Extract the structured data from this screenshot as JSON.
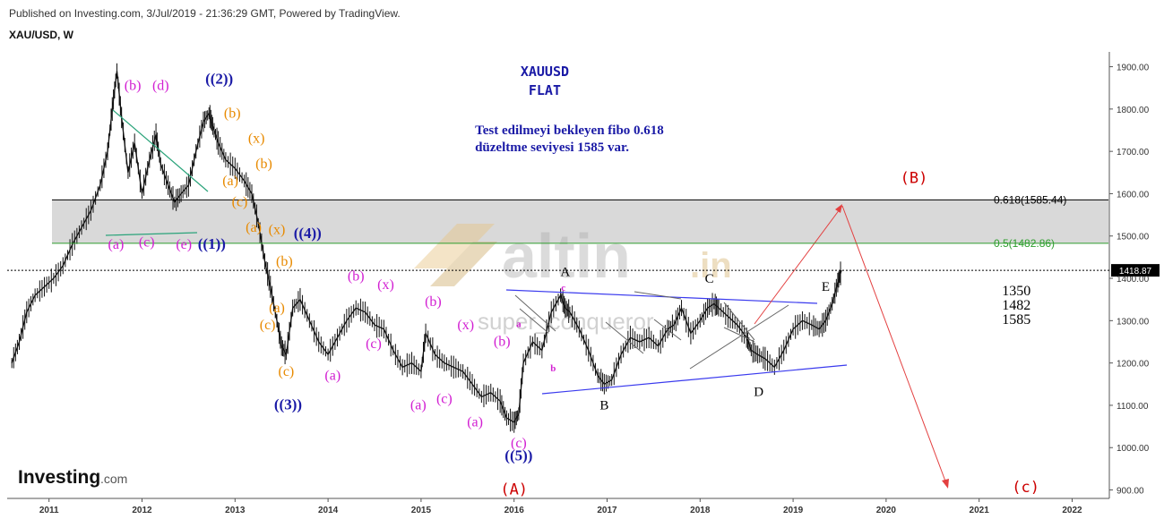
{
  "header": {
    "published": "Published on Investing.com, 3/Jul/2019 - 21:36:29 GMT, Powered by TradingView.",
    "symbol": "XAU/USD, W"
  },
  "branding": {
    "logo_text": "Investing",
    "logo_suffix": ".com",
    "watermark_main": "altin",
    "watermark_suffix": ".in",
    "watermark_sub": "super_conqueror"
  },
  "chart_data": {
    "type": "line",
    "title": "",
    "x_ticks": [
      "2011",
      "2012",
      "2013",
      "2014",
      "2015",
      "2016",
      "2017",
      "2018",
      "2019",
      "2020",
      "2021",
      "2022"
    ],
    "y_ticks": [
      "1900.00",
      "1800.00",
      "1700.00",
      "1600.00",
      "1500.00",
      "1400.00",
      "1300.00",
      "1200.00",
      "1100.00",
      "1000.00",
      "900.00"
    ],
    "ylim": [
      880,
      1935
    ],
    "xlim": [
      2010.55,
      2022.4
    ],
    "current_price": {
      "label": "1418.87",
      "value": 1418.87
    },
    "fib_levels": [
      {
        "label": "0.618(1585.44)",
        "value": 1585.44,
        "color": "#000000"
      },
      {
        "label": "0.5(1482.86)",
        "value": 1482.86,
        "color": "#2e9e2e"
      }
    ],
    "fib_zone": [
      1482.86,
      1585.44
    ],
    "series": [
      {
        "name": "",
        "x": [
          2010.6,
          2010.68,
          2010.76,
          2010.85,
          2010.95,
          2011.05,
          2011.15,
          2011.25,
          2011.35,
          2011.45,
          2011.55,
          2011.63,
          2011.68,
          2011.73,
          2011.78,
          2011.85,
          2011.92,
          2012.0,
          2012.08,
          2012.15,
          2012.2,
          2012.28,
          2012.35,
          2012.42,
          2012.5,
          2012.58,
          2012.66,
          2012.72,
          2012.76,
          2012.82,
          2012.9,
          2013.0,
          2013.1,
          2013.18,
          2013.25,
          2013.32,
          2013.38,
          2013.45,
          2013.5,
          2013.55,
          2013.62,
          2013.7,
          2013.8,
          2013.9,
          2014.0,
          2014.1,
          2014.2,
          2014.3,
          2014.4,
          2014.5,
          2014.6,
          2014.7,
          2014.8,
          2014.9,
          2015.0,
          2015.05,
          2015.15,
          2015.25,
          2015.35,
          2015.45,
          2015.55,
          2015.65,
          2015.75,
          2015.85,
          2015.92,
          2016.0,
          2016.05,
          2016.1,
          2016.2,
          2016.3,
          2016.4,
          2016.5,
          2016.55,
          2016.6,
          2016.7,
          2016.8,
          2016.9,
          2016.97,
          2017.05,
          2017.15,
          2017.25,
          2017.35,
          2017.45,
          2017.55,
          2017.65,
          2017.72,
          2017.8,
          2017.9,
          2018.0,
          2018.08,
          2018.15,
          2018.2,
          2018.3,
          2018.4,
          2018.5,
          2018.55,
          2018.62,
          2018.7,
          2018.8,
          2018.9,
          2019.0,
          2019.1,
          2019.2,
          2019.28,
          2019.35,
          2019.42,
          2019.48,
          2019.52
        ],
        "y": [
          1200,
          1250,
          1320,
          1360,
          1380,
          1400,
          1430,
          1480,
          1520,
          1560,
          1620,
          1700,
          1800,
          1890,
          1780,
          1650,
          1720,
          1600,
          1680,
          1740,
          1670,
          1620,
          1580,
          1600,
          1620,
          1700,
          1770,
          1790,
          1760,
          1720,
          1680,
          1660,
          1630,
          1600,
          1530,
          1440,
          1380,
          1300,
          1240,
          1220,
          1330,
          1350,
          1300,
          1250,
          1220,
          1260,
          1300,
          1330,
          1320,
          1290,
          1280,
          1230,
          1190,
          1200,
          1180,
          1270,
          1220,
          1200,
          1190,
          1180,
          1150,
          1120,
          1130,
          1110,
          1070,
          1060,
          1080,
          1200,
          1250,
          1230,
          1320,
          1360,
          1330,
          1320,
          1280,
          1230,
          1170,
          1150,
          1160,
          1220,
          1260,
          1250,
          1260,
          1240,
          1280,
          1290,
          1330,
          1270,
          1300,
          1330,
          1340,
          1330,
          1310,
          1290,
          1260,
          1230,
          1220,
          1210,
          1190,
          1230,
          1280,
          1300,
          1290,
          1280,
          1300,
          1340,
          1390,
          1418.87
        ]
      }
    ],
    "annotations": [
      {
        "text": "XAUUSD",
        "x": 2016.33,
        "y": 1878,
        "color": "#1a1aa6"
      },
      {
        "text": "FLAT",
        "x": 2016.33,
        "y": 1833,
        "color": "#1a1aa6"
      },
      {
        "text": "Test edilmeyi bekleyen fibo 0.618",
        "x": 2015.58,
        "y": 1740,
        "color": "#1a1aa6"
      },
      {
        "text": "düzeltme seviyesi 1585 var.",
        "x": 2015.58,
        "y": 1700,
        "color": "#1a1aa6"
      },
      {
        "text": "(B)",
        "x": 2020.3,
        "y": 1625,
        "color": "#cc0000"
      },
      {
        "text": "(A)",
        "x": 2016.0,
        "y": 890,
        "color": "#cc0000"
      },
      {
        "text": "(c)",
        "x": 2021.5,
        "y": 895,
        "color": "#cc0000"
      },
      {
        "text": "((2))",
        "x": 2012.83,
        "y": 1860,
        "color": "#1a1aa6"
      },
      {
        "text": "((1))",
        "x": 2012.75,
        "y": 1470,
        "color": "#1a1aa6"
      },
      {
        "text": "((3))",
        "x": 2013.57,
        "y": 1090,
        "color": "#1a1aa6"
      },
      {
        "text": "((4))",
        "x": 2013.78,
        "y": 1495,
        "color": "#1a1aa6"
      },
      {
        "text": "((5))",
        "x": 2016.05,
        "y": 970,
        "color": "#1a1aa6"
      },
      {
        "text": "(b)",
        "x": 2011.9,
        "y": 1845,
        "color": "#d21fd2"
      },
      {
        "text": "(d)",
        "x": 2012.2,
        "y": 1845,
        "color": "#d21fd2"
      },
      {
        "text": "(a)",
        "x": 2011.72,
        "y": 1470,
        "color": "#d21fd2"
      },
      {
        "text": "(c)",
        "x": 2012.05,
        "y": 1475,
        "color": "#d21fd2"
      },
      {
        "text": "(e)",
        "x": 2012.45,
        "y": 1470,
        "color": "#d21fd2"
      },
      {
        "text": "(b)",
        "x": 2012.97,
        "y": 1780,
        "color": "#e88a00"
      },
      {
        "text": "(x)",
        "x": 2013.23,
        "y": 1720,
        "color": "#e88a00"
      },
      {
        "text": "(b)",
        "x": 2013.31,
        "y": 1660,
        "color": "#e88a00"
      },
      {
        "text": "(a)",
        "x": 2012.95,
        "y": 1620,
        "color": "#e88a00"
      },
      {
        "text": "(c)",
        "x": 2013.05,
        "y": 1570,
        "color": "#e88a00"
      },
      {
        "text": "(a)",
        "x": 2013.2,
        "y": 1510,
        "color": "#e88a00"
      },
      {
        "text": "(x)",
        "x": 2013.45,
        "y": 1505,
        "color": "#e88a00"
      },
      {
        "text": "(b)",
        "x": 2013.53,
        "y": 1430,
        "color": "#e88a00"
      },
      {
        "text": "(a)",
        "x": 2013.45,
        "y": 1320,
        "color": "#e88a00"
      },
      {
        "text": "(c)",
        "x": 2013.35,
        "y": 1280,
        "color": "#e88a00"
      },
      {
        "text": "(c)",
        "x": 2013.55,
        "y": 1170,
        "color": "#e88a00"
      },
      {
        "text": "(b)",
        "x": 2014.3,
        "y": 1395,
        "color": "#d21fd2"
      },
      {
        "text": "(x)",
        "x": 2014.62,
        "y": 1375,
        "color": "#d21fd2"
      },
      {
        "text": "(b)",
        "x": 2015.13,
        "y": 1335,
        "color": "#d21fd2"
      },
      {
        "text": "(c)",
        "x": 2014.49,
        "y": 1235,
        "color": "#d21fd2"
      },
      {
        "text": "(a)",
        "x": 2014.05,
        "y": 1160,
        "color": "#d21fd2"
      },
      {
        "text": "(x)",
        "x": 2015.48,
        "y": 1280,
        "color": "#d21fd2"
      },
      {
        "text": "(b)",
        "x": 2015.87,
        "y": 1240,
        "color": "#d21fd2"
      },
      {
        "text": "(a)",
        "x": 2014.97,
        "y": 1090,
        "color": "#d21fd2"
      },
      {
        "text": "(c)",
        "x": 2015.25,
        "y": 1105,
        "color": "#d21fd2"
      },
      {
        "text": "(a)",
        "x": 2015.58,
        "y": 1050,
        "color": "#d21fd2"
      },
      {
        "text": "(c)",
        "x": 2016.05,
        "y": 1000,
        "color": "#d21fd2"
      },
      {
        "text": "a",
        "x": 2016.05,
        "y": 1285,
        "color": "#d21fd2"
      },
      {
        "text": "b",
        "x": 2016.42,
        "y": 1180,
        "color": "#d21fd2"
      },
      {
        "text": "c",
        "x": 2016.53,
        "y": 1370,
        "color": "#d21fd2"
      },
      {
        "text": "A",
        "x": 2016.55,
        "y": 1405,
        "color": "#000000"
      },
      {
        "text": "B",
        "x": 2016.97,
        "y": 1090,
        "color": "#000000"
      },
      {
        "text": "C",
        "x": 2018.1,
        "y": 1390,
        "color": "#000000"
      },
      {
        "text": "D",
        "x": 2018.63,
        "y": 1122,
        "color": "#000000"
      },
      {
        "text": "E",
        "x": 2019.35,
        "y": 1370,
        "color": "#000000"
      },
      {
        "text": "1350",
        "x": 2021.4,
        "y": 1360,
        "color": "#000000"
      },
      {
        "text": "1482",
        "x": 2021.4,
        "y": 1326,
        "color": "#000000"
      },
      {
        "text": "1585",
        "x": 2021.4,
        "y": 1292,
        "color": "#000000"
      }
    ]
  }
}
